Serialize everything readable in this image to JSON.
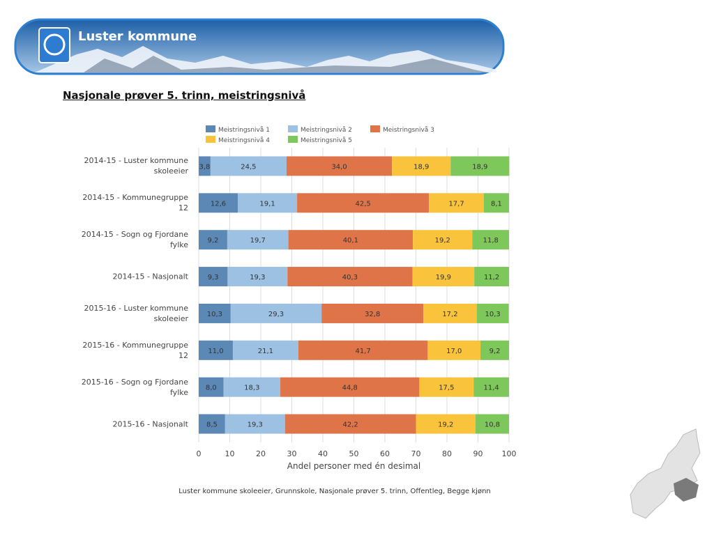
{
  "header": {
    "title": "Luster kommune"
  },
  "chart_data": {
    "type": "stacked-barh",
    "title": "Nasjonale prøver 5. trinn, meistringsnivå",
    "categories": [
      "2014-15 - Luster kommune skoleeier",
      "2014-15 - Kommunegruppe 12",
      "2014-15 - Sogn og Fjordane fylke",
      "2014-15 - Nasjonalt",
      "2015-16 - Luster kommune skoleeier",
      "2015-16 - Kommunegruppe 12",
      "2015-16 - Sogn og Fjordane fylke",
      "2015-16 - Nasjonalt"
    ],
    "series": [
      {
        "name": "Meistringsnivå 1",
        "color": "#5b88b5",
        "values": [
          3.8,
          12.6,
          9.2,
          9.3,
          10.3,
          11.0,
          8.0,
          8.5
        ],
        "value_labels": [
          "3,8",
          "12,6",
          "9,2",
          "9,3",
          "10,3",
          "11,0",
          "8,0",
          "8,5"
        ]
      },
      {
        "name": "Meistringsnivå 2",
        "color": "#9dc1e2",
        "values": [
          24.5,
          19.1,
          19.7,
          19.3,
          29.3,
          21.1,
          18.3,
          19.3
        ],
        "value_labels": [
          "24,5",
          "19,1",
          "19,7",
          "19,3",
          "29,3",
          "21,1",
          "18,3",
          "19,3"
        ]
      },
      {
        "name": "Meistringsnivå 3",
        "color": "#df7449",
        "values": [
          34.0,
          42.5,
          40.1,
          40.3,
          32.8,
          41.7,
          44.8,
          42.2
        ],
        "value_labels": [
          "34,0",
          "42,5",
          "40,1",
          "40,3",
          "32,8",
          "41,7",
          "44,8",
          "42,2"
        ]
      },
      {
        "name": "Meistringsnivå 4",
        "color": "#f9c33b",
        "values": [
          18.9,
          17.7,
          19.2,
          19.9,
          17.2,
          17.0,
          17.5,
          19.2
        ],
        "value_labels": [
          "18,9",
          "17,7",
          "19,2",
          "19,9",
          "17,2",
          "17,0",
          "17,5",
          "19,2"
        ]
      },
      {
        "name": "Meistringsnivå 5",
        "color": "#7ec75b",
        "values": [
          18.9,
          8.1,
          11.8,
          11.2,
          10.3,
          9.2,
          11.4,
          10.8
        ],
        "value_labels": [
          "18,9",
          "8,1",
          "11,8",
          "11,2",
          "10,3",
          "9,2",
          "11,4",
          "10,8"
        ]
      }
    ],
    "xlim": [
      0,
      100
    ],
    "xticks": [
      0,
      10,
      20,
      30,
      40,
      50,
      60,
      70,
      80,
      90,
      100
    ],
    "xlabel": "Andel personer med én desimal",
    "caption": "Luster kommune skoleeier, Grunnskole, Nasjonale prøver 5. trinn, Offentleg, Begge kjønn",
    "grid": true
  }
}
